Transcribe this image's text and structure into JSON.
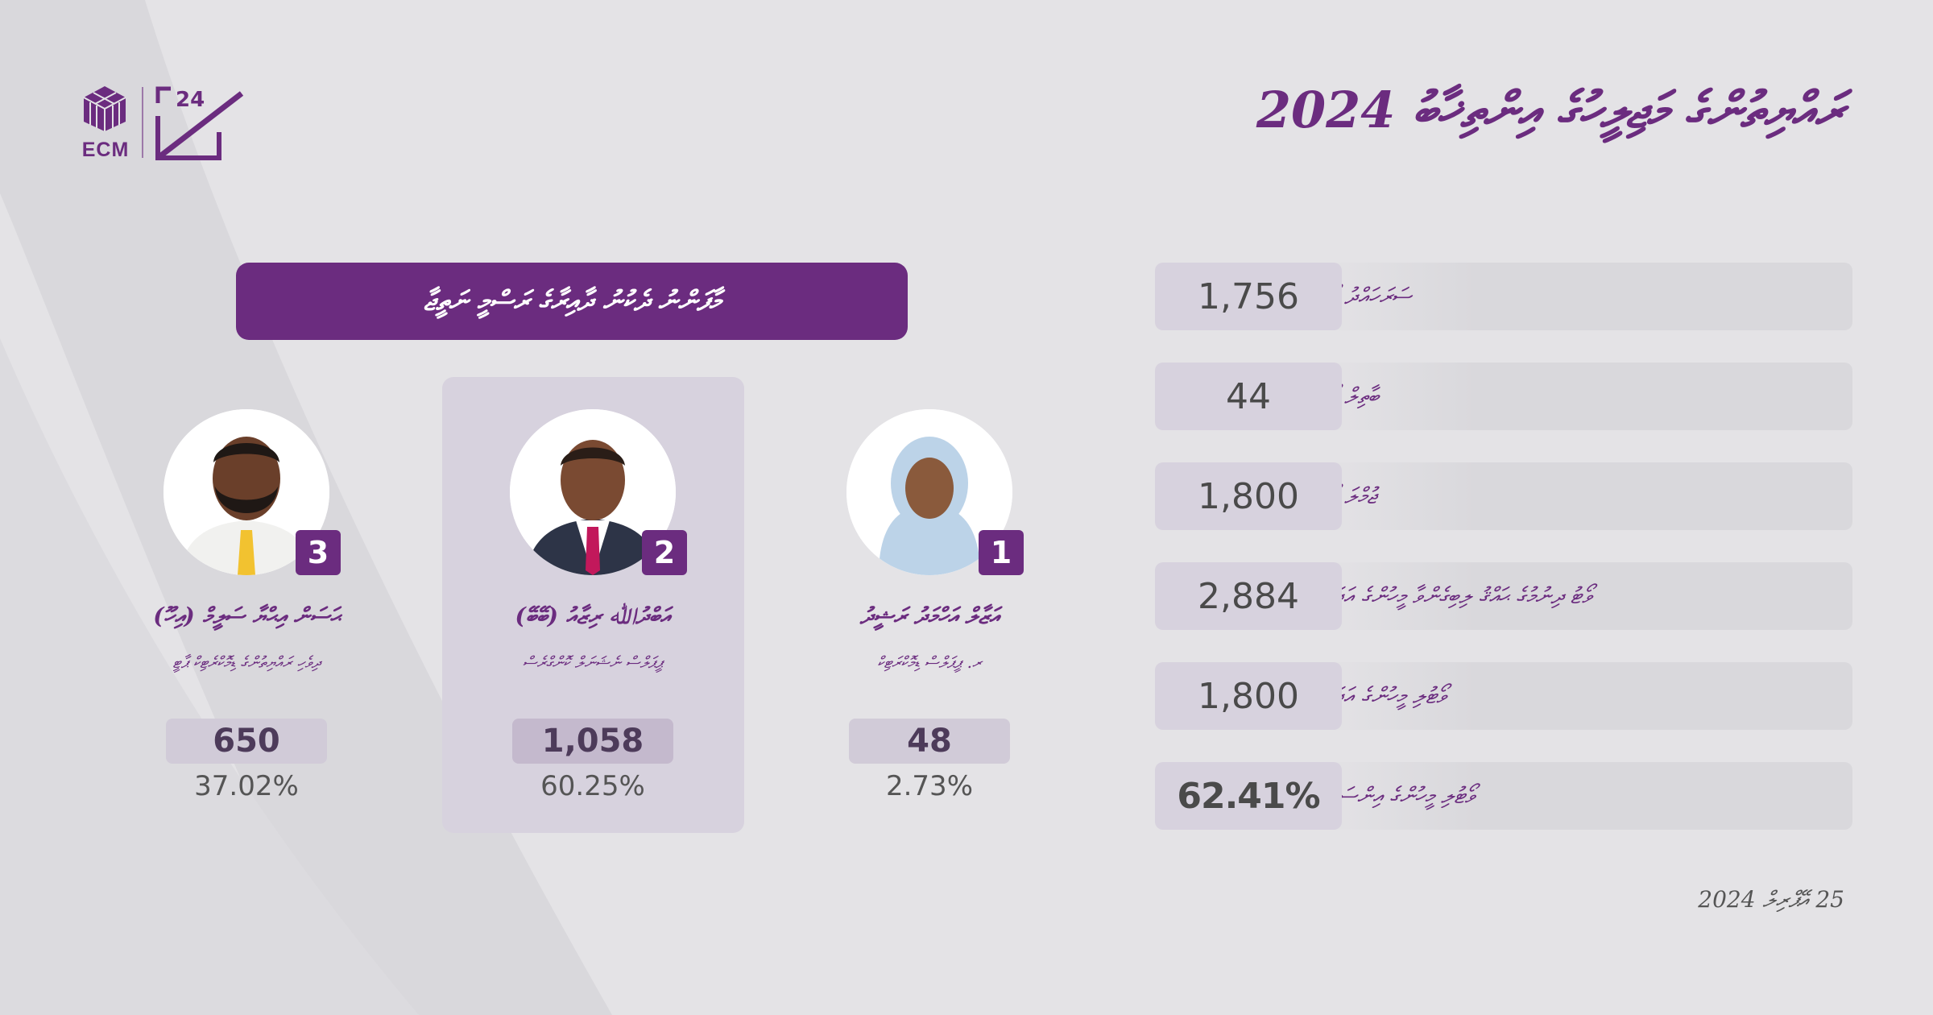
{
  "logo": {
    "text": "ECM",
    "mark_digits": "24"
  },
  "header": {
    "title": "ރައްޔިތުންގެ މަޖިލީހުގެ އިންތިޚާބު 2024"
  },
  "stats": [
    {
      "label": "ސަރަހައްދު ވޯޓު",
      "value": "1,756"
    },
    {
      "label": "ބާތިލް ވޯޓު",
      "value": "44"
    },
    {
      "label": "ޖުމްލަ ވޯޓު",
      "value": "1,800"
    },
    {
      "label": "ވޯޓު ދިނުމުގެ ޙައްޤު ލިބިގެންވާ މީހުންގެ އަދަދު",
      "value": "2,884"
    },
    {
      "label": "ވޯޓުލި މީހުންގެ އަދަދު",
      "value": "1,800"
    },
    {
      "label": "ވޯޓުލި މީހުންގެ އިންސައްތަ",
      "value": "62.41%"
    }
  ],
  "banner": {
    "text": "މާފަންނު ދެކުނު ދާއިރާގެ ރަސްމީ ނަތީޖާ"
  },
  "candidates": [
    {
      "number": "1",
      "name": "އަޒާލް އަހްމަދު ރަޝީދު",
      "party": "ރ. ޕީޕަލްސް ޑިމޮކްރަޓިކް",
      "votes": "48",
      "pct": "2.73%",
      "winner": false,
      "scarf": "#bcd3e8",
      "tie": ""
    },
    {
      "number": "2",
      "name": "އަބްދުﷲ ރިޒާއު (ބޭބޭ)",
      "party": "ޕީޕަލްސް ނެޝަނަލް ކޮންގްރެސް",
      "votes": "1,058",
      "pct": "60.25%",
      "winner": true,
      "scarf": "",
      "tie": "#c2185b"
    },
    {
      "number": "3",
      "name": "ޙަސަން އިޙްޔާ ސަލީމް (އިހޫ)",
      "party": "ދިވެހި ރައްޔިތުންގެ ޑިމޮކްރެޓިކް ޕާޓީ",
      "votes": "650",
      "pct": "37.02%",
      "winner": false,
      "scarf": "",
      "tie": "#f2c230"
    }
  ],
  "footer": {
    "date": "25 އޭޕްރިލް 2024"
  },
  "colors": {
    "brand": "#6b2c7f",
    "background": "#e4e3e6",
    "panel": "#d7d2de"
  }
}
